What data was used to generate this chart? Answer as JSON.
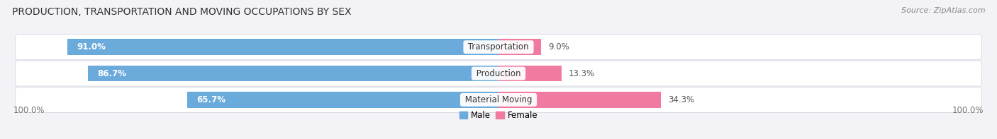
{
  "title": "PRODUCTION, TRANSPORTATION AND MOVING OCCUPATIONS BY SEX",
  "source": "Source: ZipAtlas.com",
  "categories": [
    "Transportation",
    "Production",
    "Material Moving"
  ],
  "male_values": [
    91.0,
    86.7,
    65.7
  ],
  "female_values": [
    9.0,
    13.3,
    34.3
  ],
  "male_color": "#6aabdb",
  "female_color": "#f07aa0",
  "male_light_color": "#c5daf0",
  "female_light_color": "#f8d0dd",
  "row_bg_color": "#ebebf2",
  "title_fontsize": 10,
  "source_fontsize": 8,
  "label_fontsize": 8.5,
  "category_fontsize": 8.5,
  "tick_fontsize": 8.5,
  "background_color": "#f2f2f7",
  "bar_height": 0.6,
  "total_width": 100
}
